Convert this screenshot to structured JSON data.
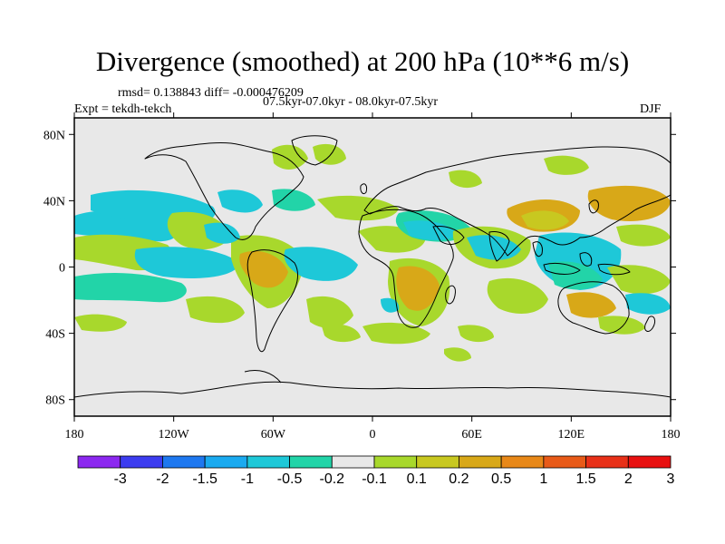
{
  "title": "Divergence (smoothed) at 200 hPa (10**6 m/s)",
  "stats": "rmsd= 0.138843 diff= -0.000476209",
  "experiment": "Expt = tekdh-tekch",
  "period": "07.5kyr-07.0kyr - 08.0kyr-07.5kyr",
  "season": "DJF",
  "map": {
    "projection": "cylindrical equidistant",
    "lon_range": [
      -180,
      180
    ],
    "lat_range": [
      -90,
      90
    ],
    "x_ticks": [
      {
        "lon": -180,
        "label": "180"
      },
      {
        "lon": -120,
        "label": "120W"
      },
      {
        "lon": -60,
        "label": "60W"
      },
      {
        "lon": 0,
        "label": "0"
      },
      {
        "lon": 60,
        "label": "60E"
      },
      {
        "lon": 120,
        "label": "120E"
      },
      {
        "lon": 180,
        "label": "180"
      }
    ],
    "y_ticks": [
      {
        "lat": 80,
        "label": "80N"
      },
      {
        "lat": 40,
        "label": "40N"
      },
      {
        "lat": 0,
        "label": "0"
      },
      {
        "lat": -40,
        "label": "40S"
      },
      {
        "lat": -80,
        "label": "80S"
      }
    ],
    "fill_colors": {
      "neutral": "#e8e8e8",
      "cyan": "#1ec8d8",
      "teal": "#22d4a8",
      "lime": "#a8d82c",
      "mustard": "#c8c820",
      "gold": "#d8a818",
      "blue": "#1aaaf0",
      "coast": "#000000"
    }
  },
  "colorbar": {
    "labels": [
      "-3",
      "-2",
      "-1.5",
      "-1",
      "-0.5",
      "-0.2",
      "-0.1",
      "0.1",
      "0.2",
      "0.5",
      "1",
      "1.5",
      "2",
      "3"
    ],
    "colors": [
      "#8c28f0",
      "#3c3cf0",
      "#1e78f0",
      "#1aaaf0",
      "#1ec8d8",
      "#22d4a8",
      "#e8e8e8",
      "#a8d82c",
      "#c8c820",
      "#d8a818",
      "#e88818",
      "#e85a18",
      "#e83018",
      "#e81010"
    ]
  },
  "chart_data": {
    "type": "filled contour map",
    "title": "Divergence (smoothed) at 200 hPa (10**6 m/s)",
    "variable": "200 hPa divergence difference",
    "units": "10**6 m/s",
    "contour_levels": [
      -3,
      -2,
      -1.5,
      -1,
      -0.5,
      -0.2,
      -0.1,
      0.1,
      0.2,
      0.5,
      1,
      1.5,
      2,
      3
    ],
    "features": [
      {
        "region": "Eastern North Pacific 15-30N",
        "class": "0.1 to 0.5",
        "color": "lime"
      },
      {
        "region": "Central Pacific 0-15N",
        "class": "-0.5 to -0.1",
        "color": "cyan"
      },
      {
        "region": "North Pacific 30-40N",
        "class": "-0.5 to -0.1",
        "color": "cyan"
      },
      {
        "region": "Amazon / tropical South America",
        "class": "0.1 to 0.5",
        "color": "gold"
      },
      {
        "region": "Tropical Atlantic",
        "class": "-0.5 to -0.1",
        "color": "cyan"
      },
      {
        "region": "Southern Africa",
        "class": "0.2 to 1",
        "color": "mustard"
      },
      {
        "region": "Arabian Sea / Indian Ocean",
        "class": "-0.5 to -0.1",
        "color": "cyan"
      },
      {
        "region": "Maritime Continent",
        "class": "-0.5 to -0.1",
        "color": "cyan"
      },
      {
        "region": "East Asia 30-40N",
        "class": "0.2 to 0.5",
        "color": "mustard"
      },
      {
        "region": "Southern Ocean 30-45S",
        "class": "mixed",
        "color": "mixed"
      }
    ]
  }
}
